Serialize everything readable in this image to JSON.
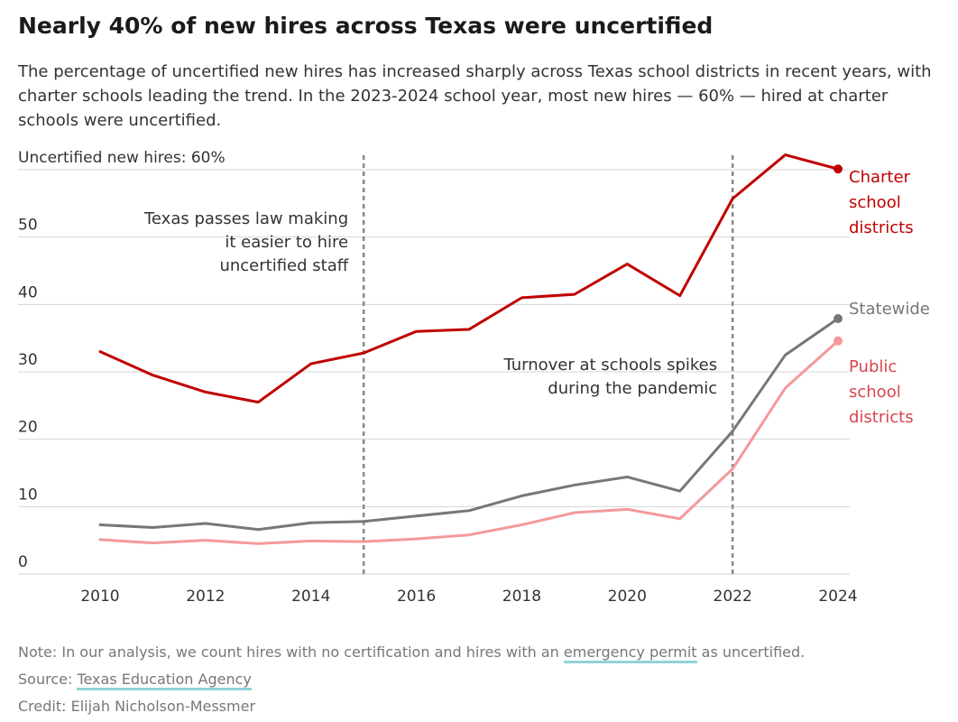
{
  "title": "Nearly 40% of new hires across Texas were uncertified",
  "subtitle": "The percentage of uncertified new hires has increased sharply across Texas school districts in recent years, with charter schools leading the trend. In the 2023-2024 school year, most new hires — 60% — hired at charter schools were uncertified.",
  "colors": {
    "charter": "#c00000",
    "statewide": "#777777",
    "public": "#f4999a",
    "public_label": "#d9454c",
    "grid": "#d4d4d4",
    "annotation_line": "#888888",
    "link_underline": "#8fd3d8"
  },
  "chart_data": {
    "type": "line",
    "ylabel_top": "Uncertified new hires: 60%",
    "y_ticks": [
      "0",
      "10",
      "20",
      "30",
      "40",
      "50"
    ],
    "x_ticks": [
      "2010",
      "2012",
      "2014",
      "2016",
      "2018",
      "2020",
      "2022",
      "2024"
    ],
    "xlim": [
      2010,
      2024
    ],
    "ylim": [
      0,
      60
    ],
    "grid": true,
    "x": [
      2010,
      2011,
      2012,
      2013,
      2014,
      2015,
      2016,
      2017,
      2018,
      2019,
      2020,
      2021,
      2022,
      2023,
      2024
    ],
    "series": [
      {
        "name": "Charter school districts",
        "label_lines": [
          "Charter",
          "school",
          "districts"
        ],
        "color_key": "charter",
        "values": [
          33.0,
          29.5,
          27.0,
          25.5,
          31.2,
          32.8,
          36.0,
          36.3,
          41.0,
          41.5,
          46.0,
          41.3,
          55.7,
          62.2,
          60.1
        ]
      },
      {
        "name": "Statewide",
        "label_lines": [
          "Statewide"
        ],
        "color_key": "statewide",
        "values": [
          7.3,
          6.9,
          7.5,
          6.6,
          7.6,
          7.8,
          8.6,
          9.4,
          11.6,
          13.2,
          14.4,
          12.3,
          21.2,
          32.5,
          37.9
        ]
      },
      {
        "name": "Public school districts",
        "label_lines": [
          "Public",
          "school",
          "districts"
        ],
        "color_key": "public",
        "values": [
          5.1,
          4.6,
          5.0,
          4.5,
          4.9,
          4.8,
          5.2,
          5.8,
          7.3,
          9.1,
          9.6,
          8.2,
          15.6,
          27.6,
          34.6
        ]
      }
    ],
    "annotations": [
      {
        "x": 2015,
        "lines": [
          "Texas passes law making",
          "it easier to hire",
          "uncertified staff"
        ]
      },
      {
        "x": 2022,
        "lines": [
          "Turnover at schools spikes",
          "during the pandemic"
        ]
      }
    ]
  },
  "notes": {
    "note_prefix": "Note: In our analysis, we count hires with no certification and hires with an ",
    "note_link": "emergency permit",
    "note_suffix": " as uncertified.",
    "source_prefix": "Source: ",
    "source_link": "Texas Education Agency",
    "credit": "Credit: Elijah Nicholson-Messmer"
  }
}
